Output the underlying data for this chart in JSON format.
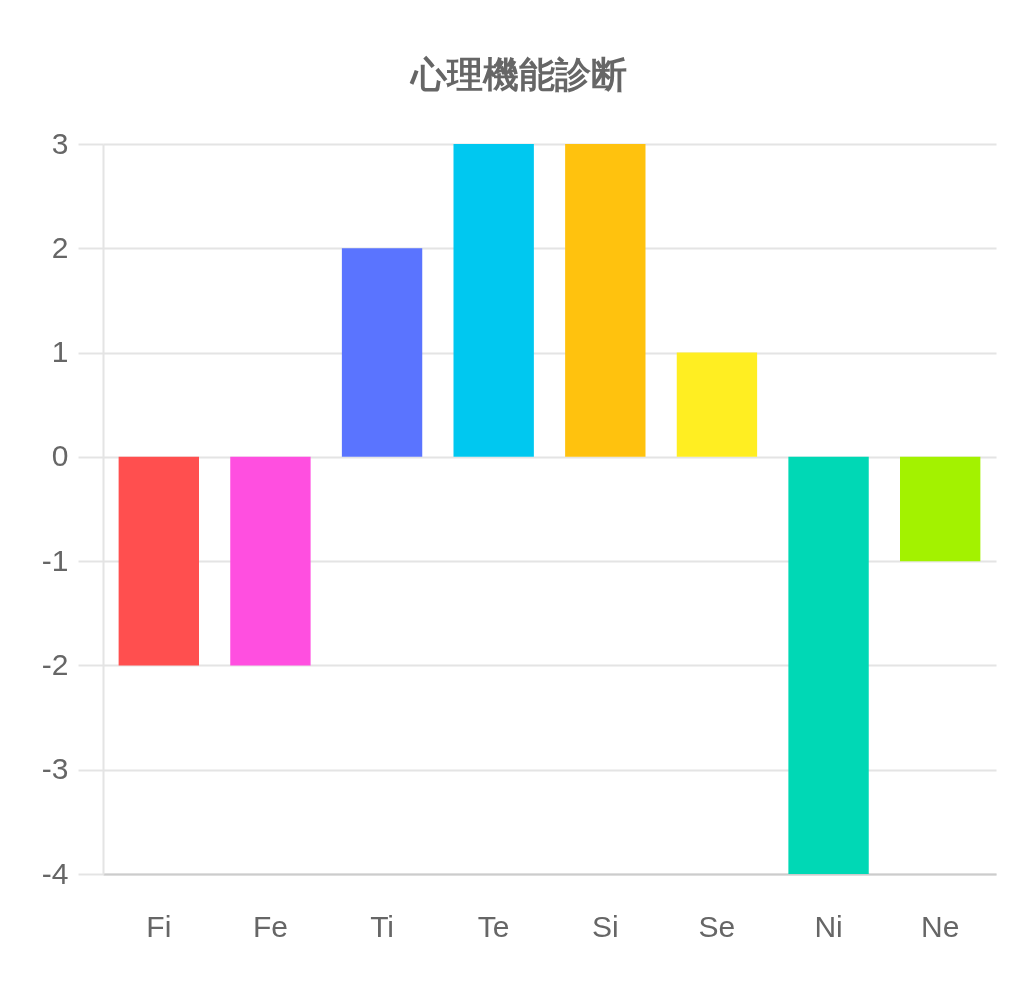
{
  "chart_data": {
    "type": "bar",
    "title": "心理機能診断",
    "categories": [
      "Fi",
      "Fe",
      "Ti",
      "Te",
      "Si",
      "Se",
      "Ni",
      "Ne"
    ],
    "values": [
      -2,
      -2,
      2,
      3,
      3,
      1,
      -4,
      -1
    ],
    "colors": [
      "#ff4f4f",
      "#ff4fe0",
      "#5a74ff",
      "#00c8f0",
      "#ffc20e",
      "#ffee22",
      "#00d8b5",
      "#a3f200"
    ],
    "ylim": [
      -4,
      3
    ],
    "yticks": [
      3,
      2,
      1,
      0,
      -1,
      -2,
      -3,
      -4
    ],
    "grid": "y"
  }
}
